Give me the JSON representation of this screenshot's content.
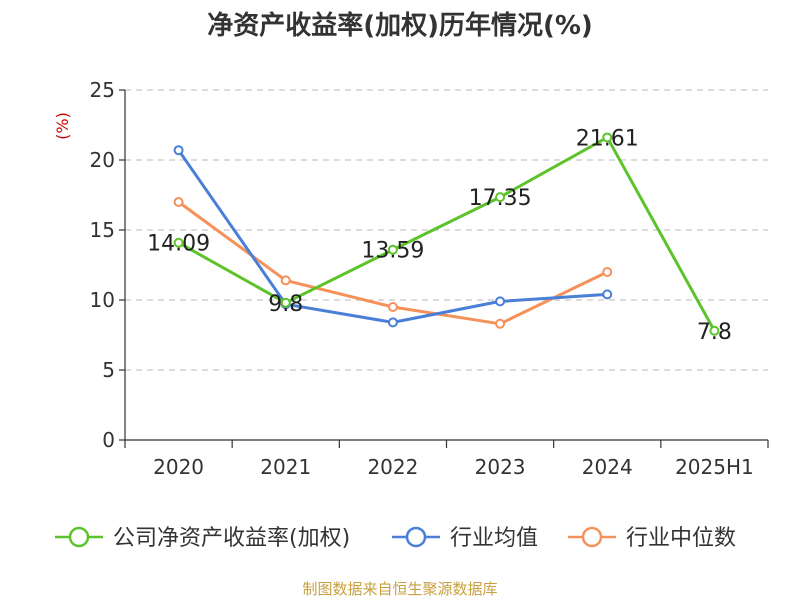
{
  "chart_data": {
    "type": "line",
    "title": "净资产收益率(加权)历年情况(%)",
    "y_unit": "(%)",
    "categories": [
      "2020",
      "2021",
      "2022",
      "2023",
      "2024",
      "2025H1"
    ],
    "ylim": [
      0,
      25
    ],
    "yticks": [
      0,
      5,
      10,
      15,
      20,
      25
    ],
    "grid": true,
    "legend_position": "bottom",
    "series": [
      {
        "name": "公司净资产收益率(加权)",
        "color": "#5cc42a",
        "values": [
          14.09,
          9.8,
          13.59,
          17.35,
          21.61,
          7.8
        ],
        "data_labels": [
          "14.09",
          "9.8",
          "13.59",
          "17.35",
          "21.61",
          "7.8"
        ]
      },
      {
        "name": "行业均值",
        "color": "#4a7fd8",
        "values": [
          20.7,
          9.7,
          8.4,
          9.9,
          10.4,
          null
        ]
      },
      {
        "name": "行业中位数",
        "color": "#f5915a",
        "values": [
          17.0,
          11.4,
          9.5,
          8.3,
          12.0,
          null
        ]
      }
    ]
  },
  "footer": {
    "source": "制图数据来自恒生聚源数据库"
  }
}
